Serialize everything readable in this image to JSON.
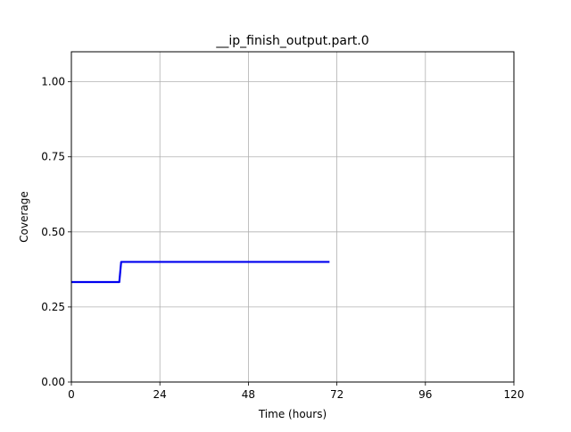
{
  "chart_data": {
    "type": "line",
    "title": "__ip_finish_output.part.0",
    "xlabel": "Time (hours)",
    "ylabel": "Coverage",
    "xlim": [
      0,
      120
    ],
    "ylim": [
      0,
      1.1
    ],
    "xticks": [
      0,
      24,
      48,
      72,
      96,
      120
    ],
    "xtick_labels": [
      "0",
      "24",
      "48",
      "72",
      "96",
      "120"
    ],
    "yticks": [
      0,
      0.25,
      0.5,
      0.75,
      1.0
    ],
    "ytick_labels": [
      "0.00",
      "0.25",
      "0.50",
      "0.75",
      "1.00"
    ],
    "grid": true,
    "legend": false,
    "series": [
      {
        "color": "#0000ee",
        "x": [
          0,
          13,
          13.5,
          70
        ],
        "y": [
          0.333,
          0.333,
          0.4,
          0.4
        ]
      }
    ]
  }
}
